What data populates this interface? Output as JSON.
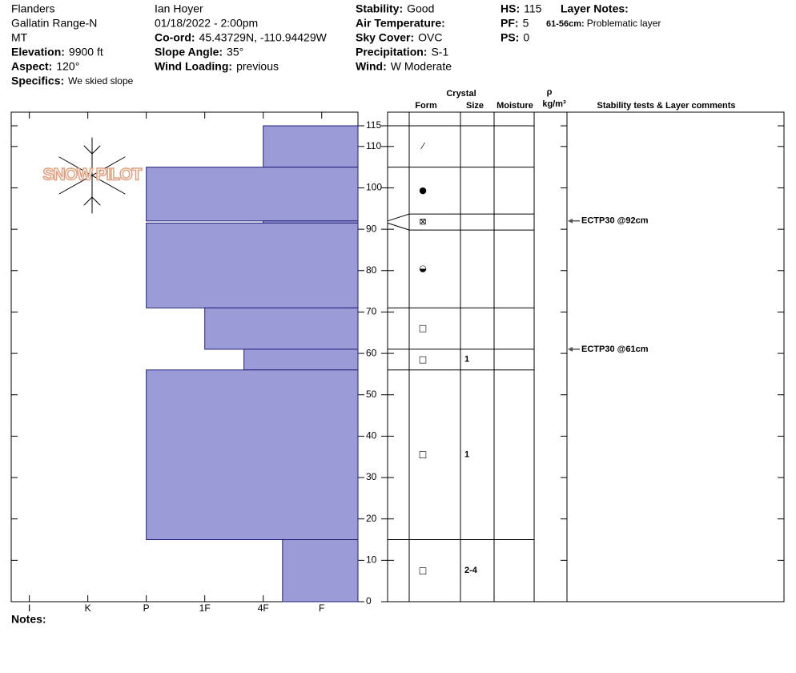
{
  "header": {
    "columns": [
      [
        "Flanders",
        "Gallatin Range-N",
        "MT",
        [
          "Elevation:",
          "9900 ft"
        ],
        [
          "Aspect:",
          "120°"
        ]
      ],
      [
        "Ian Hoyer",
        "01/18/2022 - 2:00pm",
        [
          "Co-ord:",
          "45.43729N, -110.94429W"
        ],
        [
          "Slope Angle:",
          "35°"
        ],
        [
          "Wind Loading:",
          "previous"
        ]
      ],
      [
        [
          "Stability:",
          "Good"
        ],
        [
          "Air Temperature:"
        ],
        [
          "Sky Cover:",
          "OVC"
        ],
        [
          "Precipitation:",
          "S-1"
        ],
        [
          "Wind:",
          "W Moderate"
        ]
      ],
      [
        [
          "HS:",
          "115"
        ],
        [
          "PF:",
          "5"
        ],
        [
          "PS:",
          "0"
        ]
      ],
      [
        [
          "Layer Notes:"
        ]
      ]
    ],
    "specifics": [
      "Specifics:",
      "We skied slope"
    ],
    "layer_notes": [
      [
        "61-56cm:",
        "Problematic layer"
      ]
    ]
  },
  "logo_text": "SNOW PILOT",
  "chart_data": {
    "type": "snow-profile",
    "xlim": [
      0.69,
      6.62
    ],
    "xticks": [
      {
        "value": 1,
        "label": "I"
      },
      {
        "value": 2,
        "label": "K"
      },
      {
        "value": 3,
        "label": "P"
      },
      {
        "value": 4,
        "label": "1F"
      },
      {
        "value": 5,
        "label": "4F"
      },
      {
        "value": 6,
        "label": "F"
      }
    ],
    "ylim": [
      0,
      115
    ],
    "yticks": [
      0,
      10,
      20,
      30,
      40,
      50,
      60,
      70,
      80,
      90,
      100,
      110,
      115
    ],
    "color": "#9b9bd7",
    "layers": [
      {
        "top": 115,
        "bottom": 105,
        "hardness": 5,
        "form": "⁄"
      },
      {
        "top": 105,
        "bottom": 92,
        "hardness": 3,
        "form": "●"
      },
      {
        "top": 92,
        "bottom": 91.5,
        "hardness": 5,
        "form": "⊠"
      },
      {
        "top": 91.5,
        "bottom": 71,
        "hardness": 3,
        "form": "◒"
      },
      {
        "top": 71,
        "bottom": 61,
        "hardness": 4,
        "form": "□"
      },
      {
        "top": 61,
        "bottom": 56,
        "hardness": 4.67,
        "form": "□",
        "size": "1"
      },
      {
        "top": 56,
        "bottom": 15,
        "hardness": 3,
        "form": "□",
        "size": "1"
      },
      {
        "top": 15,
        "bottom": 0,
        "hardness": 5.33,
        "form": "□",
        "size": "2-4"
      }
    ],
    "columns": {
      "crystal": "Crystal",
      "form": "Form",
      "size": "Size",
      "moisture": "Moisture",
      "rho": "ρ",
      "density_unit": "kg/m³",
      "comments": "Stability tests & Layer comments"
    },
    "tests": [
      {
        "text": "ECTP30 @92cm",
        "depth": 92
      },
      {
        "text": "ECTP30 @61cm",
        "depth": 61
      }
    ]
  },
  "notes_label": "Notes:"
}
